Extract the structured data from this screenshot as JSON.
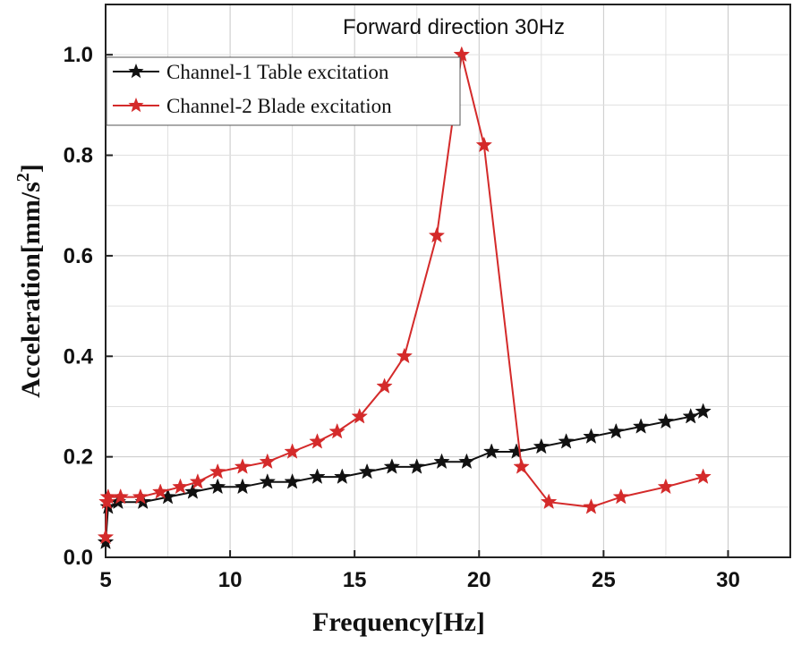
{
  "chart_data": {
    "type": "line",
    "title": "Forward direction 30Hz",
    "xlabel": "Frequency[Hz]",
    "ylabel": "Acceleration[mm/s",
    "ylabel_sup": "2",
    "ylabel_end": "]",
    "xlim": [
      5,
      32.5
    ],
    "ylim": [
      0,
      1.1
    ],
    "xticks": [
      5,
      10,
      15,
      20,
      25,
      30
    ],
    "xtick_labels": [
      "5",
      "10",
      "15",
      "20",
      "25",
      "30"
    ],
    "yticks": [
      0.0,
      0.2,
      0.4,
      0.6,
      0.8,
      1.0
    ],
    "ytick_labels": [
      "0.0",
      "0.2",
      "0.4",
      "0.6",
      "0.8",
      "1.0"
    ],
    "grid": true,
    "legend_position": "top-left",
    "series": [
      {
        "name": "Channel-1 Table excitation",
        "color": "#111111",
        "marker": "star",
        "x": [
          5.0,
          5.1,
          5.5,
          6.5,
          7.5,
          8.5,
          9.5,
          10.5,
          11.5,
          12.5,
          13.5,
          14.5,
          15.5,
          16.5,
          17.5,
          18.5,
          19.5,
          20.5,
          21.5,
          22.5,
          23.5,
          24.5,
          25.5,
          26.5,
          27.5,
          28.5,
          29.0
        ],
        "values": [
          0.03,
          0.1,
          0.11,
          0.11,
          0.12,
          0.13,
          0.14,
          0.14,
          0.15,
          0.15,
          0.16,
          0.16,
          0.17,
          0.18,
          0.18,
          0.19,
          0.19,
          0.21,
          0.21,
          0.22,
          0.23,
          0.24,
          0.25,
          0.26,
          0.27,
          0.28,
          0.29
        ]
      },
      {
        "name": "Channel-2 Blade excitation",
        "color": "#d42a2a",
        "marker": "star",
        "x": [
          5.0,
          5.05,
          5.1,
          5.6,
          6.4,
          7.2,
          8.0,
          8.7,
          9.5,
          10.5,
          11.5,
          12.5,
          13.5,
          14.3,
          15.2,
          16.2,
          17.0,
          18.3,
          19.3,
          20.2,
          21.7,
          22.8,
          24.5,
          25.7,
          27.5,
          29.0
        ],
        "values": [
          0.04,
          0.11,
          0.12,
          0.12,
          0.12,
          0.13,
          0.14,
          0.15,
          0.17,
          0.18,
          0.19,
          0.21,
          0.23,
          0.25,
          0.28,
          0.34,
          0.4,
          0.64,
          1.0,
          0.82,
          0.18,
          0.11,
          0.1,
          0.12,
          0.14,
          0.16
        ]
      }
    ]
  }
}
